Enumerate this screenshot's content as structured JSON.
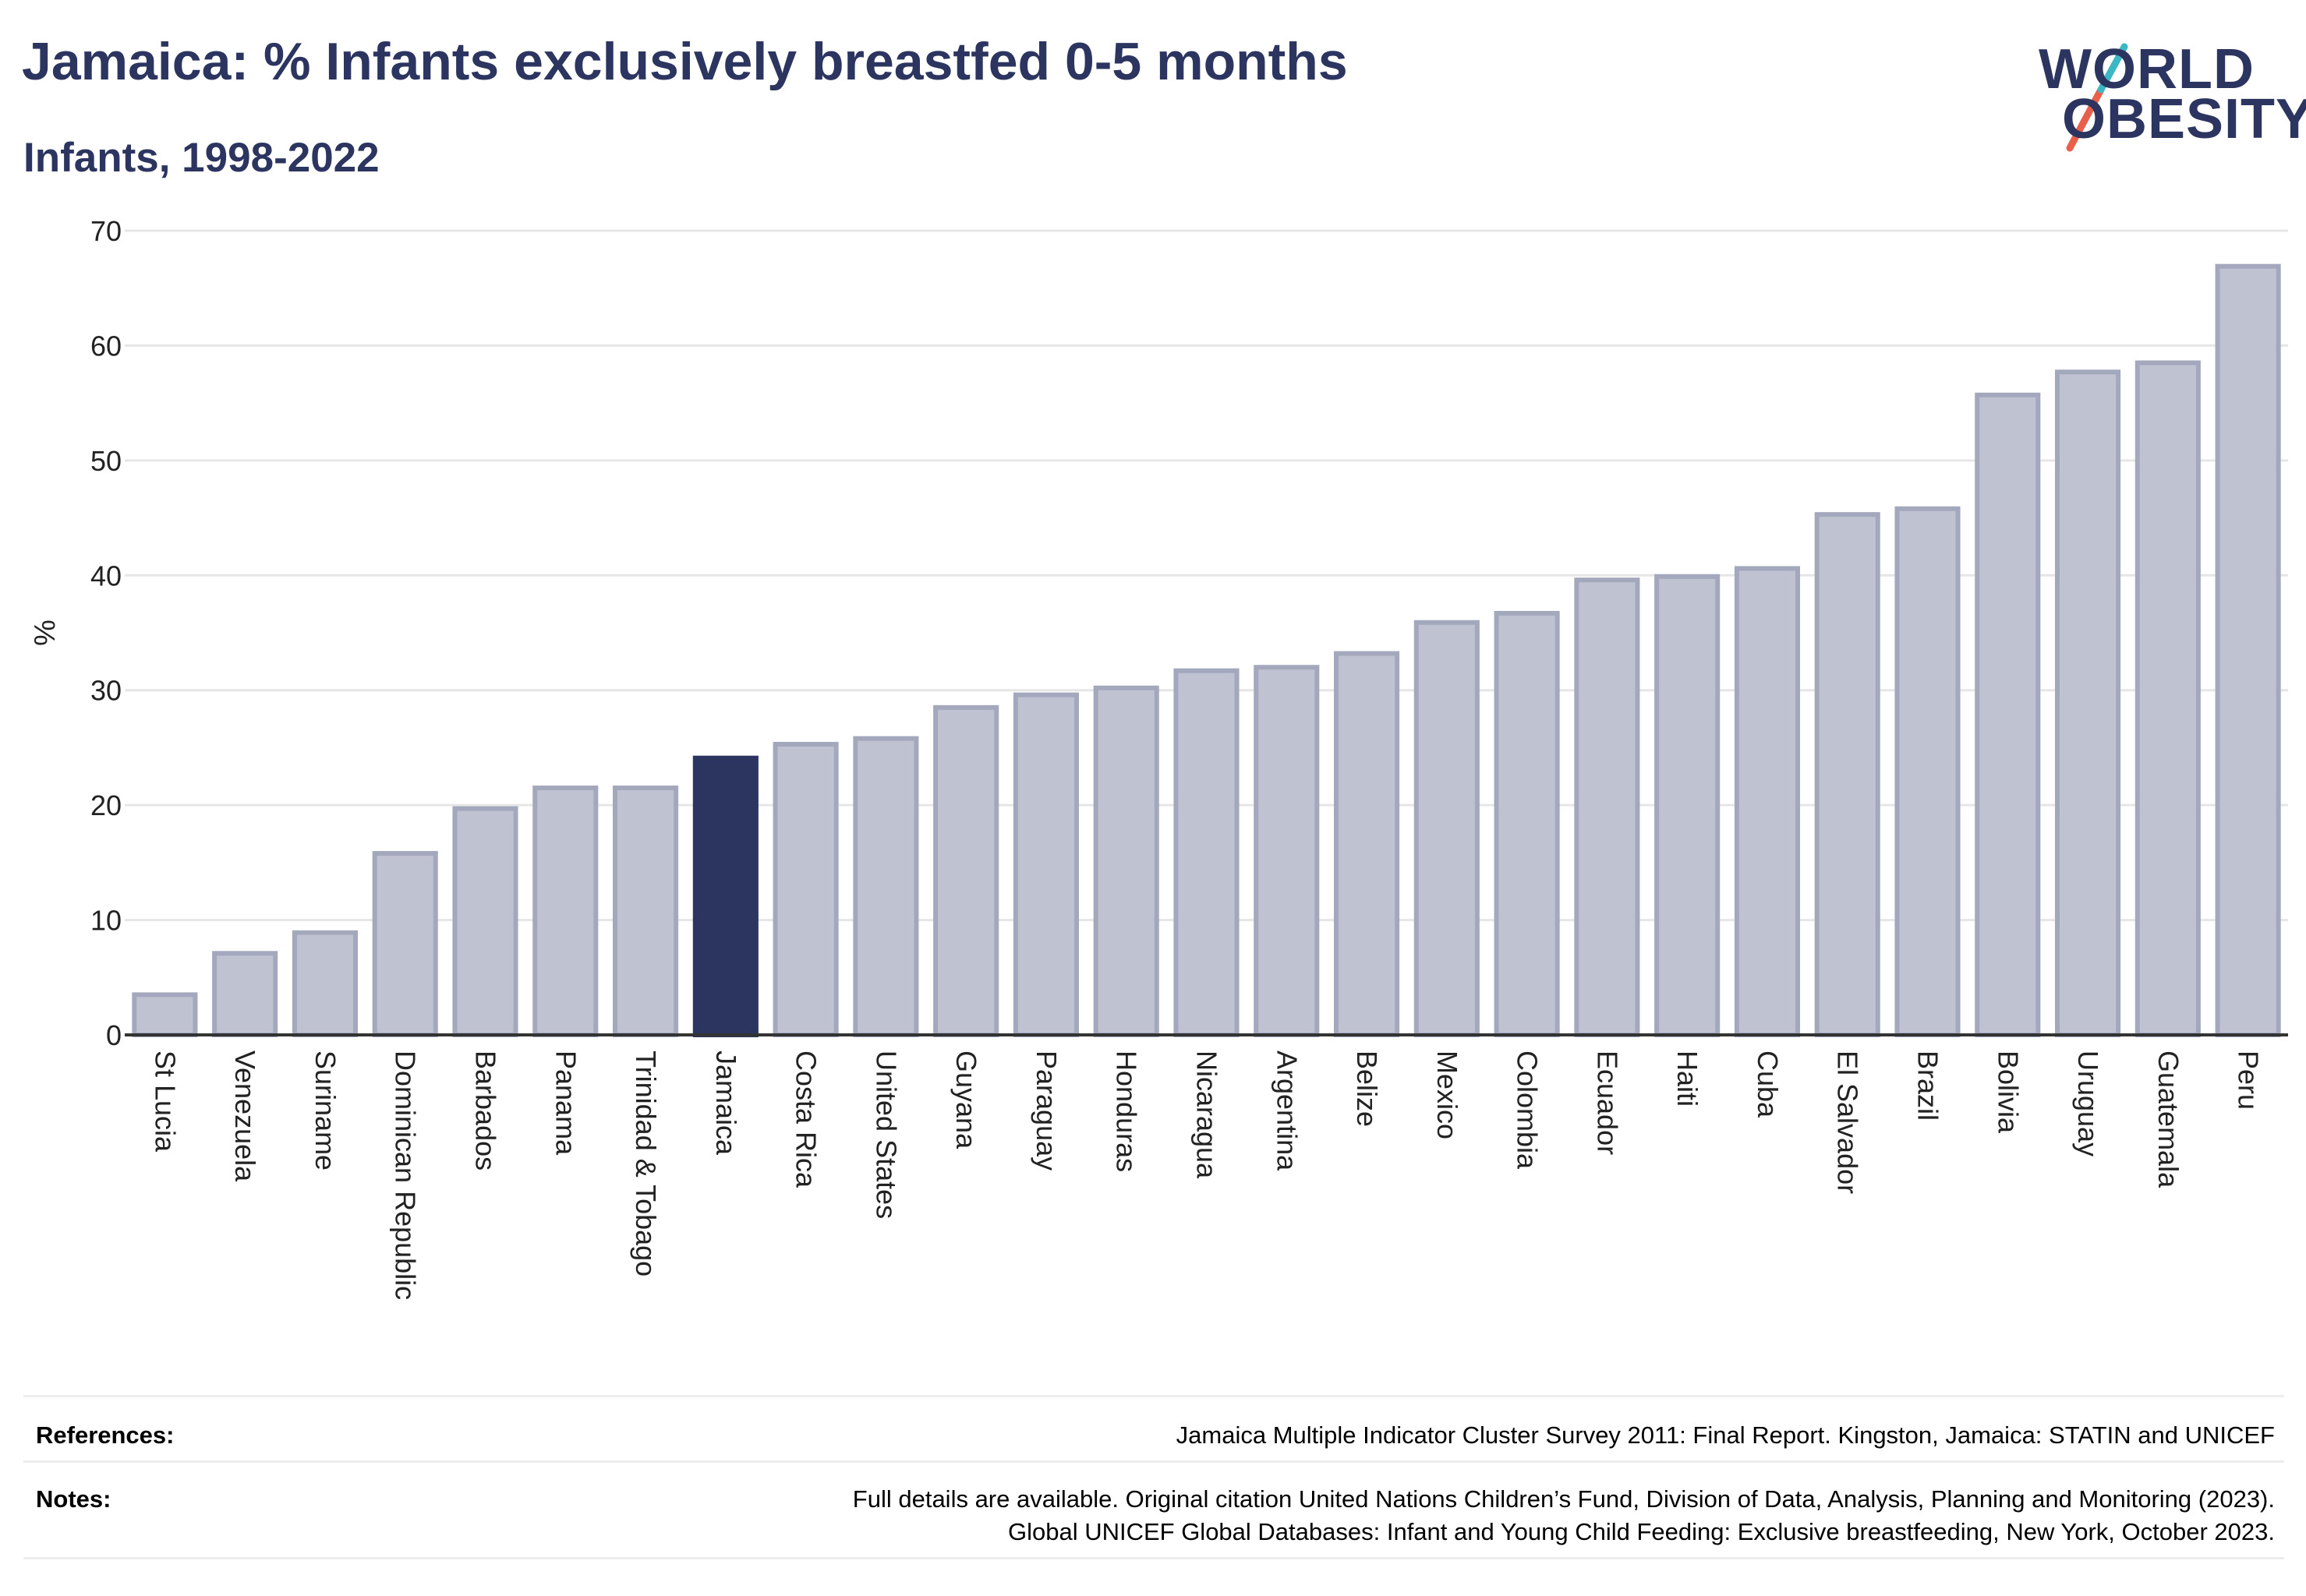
{
  "header": {
    "title": "Jamaica: % Infants exclusively breastfed 0-5 months",
    "subtitle": "Infants, 1998-2022"
  },
  "logo": {
    "line1": "WORLD",
    "line2": "OBESITY",
    "accent_teal": "#3bb8c4",
    "accent_red": "#e8604c"
  },
  "colors": {
    "highlight": "#2b3560",
    "bar": "#bfc2d0",
    "bar_stroke": "#a3a8bd",
    "grid": "#e6e6e6",
    "axis": "#333333",
    "text": "#2b3560"
  },
  "chart_data": {
    "type": "bar",
    "ylabel": "%",
    "ylim": [
      0,
      70
    ],
    "yticks": [
      0,
      10,
      20,
      30,
      40,
      50,
      60,
      70
    ],
    "grid": true,
    "highlight_category": "Jamaica",
    "categories": [
      "St Lucia",
      "Venezuela",
      "Suriname",
      "Dominican Republic",
      "Barbados",
      "Panama",
      "Trinidad & Tobago",
      "Jamaica",
      "Costa Rica",
      "United States",
      "Guyana",
      "Paraguay",
      "Honduras",
      "Nicaragua",
      "Argentina",
      "Belize",
      "Mexico",
      "Colombia",
      "Ecuador",
      "Haiti",
      "Cuba",
      "El Salvador",
      "Brazil",
      "Bolivia",
      "Uruguay",
      "Guatemala",
      "Peru"
    ],
    "values": [
      3.5,
      7.1,
      8.9,
      15.8,
      19.7,
      21.5,
      21.5,
      24.1,
      25.3,
      25.8,
      28.5,
      29.6,
      30.2,
      31.7,
      32.0,
      33.2,
      35.9,
      36.7,
      39.6,
      39.9,
      40.6,
      45.3,
      45.8,
      55.7,
      57.7,
      58.5,
      66.9
    ]
  },
  "footer": {
    "references_label": "References:",
    "references_text": "Jamaica Multiple Indicator Cluster Survey 2011: Final Report. Kingston, Jamaica: STATIN and UNICEF",
    "notes_label": "Notes:",
    "notes_line1": "Full details are available. Original citation United Nations Children’s Fund, Division of Data, Analysis, Planning and Monitoring (2023).",
    "notes_line2": "Global UNICEF Global Databases: Infant and Young Child Feeding: Exclusive breastfeeding, New York, October 2023."
  }
}
